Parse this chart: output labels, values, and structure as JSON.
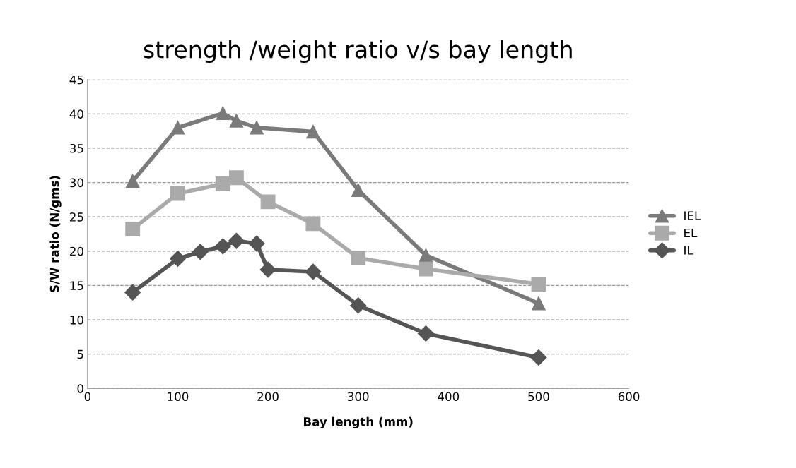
{
  "chart_data": {
    "type": "line",
    "title": "strength /weight ratio v/s bay length",
    "xlabel": "Bay length (mm)",
    "ylabel": "S/W ratio (N/gms)",
    "xlim": [
      0,
      600
    ],
    "xticks": [
      0,
      100,
      200,
      300,
      400,
      500,
      600
    ],
    "ylim": [
      0,
      45
    ],
    "yticks": [
      0,
      5,
      10,
      15,
      20,
      25,
      30,
      35,
      40,
      45
    ],
    "grid": "y",
    "legend": "right",
    "line_style": "solid",
    "series": [
      {
        "name": "IEL",
        "color": "#7a7a7a",
        "marker": "triangle",
        "x": [
          50,
          100,
          150,
          165,
          187.5,
          250,
          300,
          375,
          500
        ],
        "values": [
          30.2,
          38,
          40.1,
          39,
          38,
          37.4,
          28.9,
          19.4,
          12.4
        ]
      },
      {
        "name": "EL",
        "color": "#aaaaaa",
        "marker": "square",
        "x": [
          50,
          100,
          150,
          165,
          200,
          250,
          300,
          375,
          500
        ],
        "values": [
          23.2,
          28.4,
          29.8,
          30.7,
          27.2,
          24,
          19,
          17.4,
          15.2
        ]
      },
      {
        "name": "IL",
        "color": "#555555",
        "marker": "diamond",
        "x": [
          50,
          100,
          125,
          150,
          165,
          187.5,
          200,
          250,
          300,
          375,
          500
        ],
        "values": [
          14,
          18.9,
          19.9,
          20.7,
          21.5,
          21.1,
          17.3,
          17,
          12.1,
          8,
          4.5
        ]
      }
    ]
  }
}
